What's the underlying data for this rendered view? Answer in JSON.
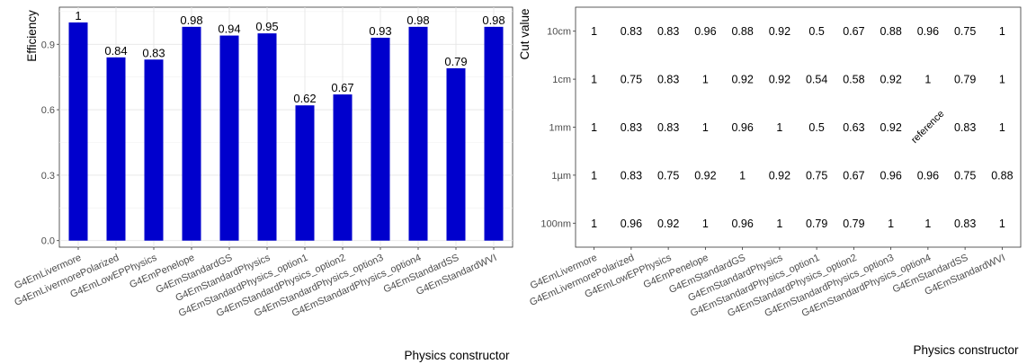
{
  "left_chart": {
    "ylabel": "Efficiency",
    "xlabel": "Physics constructor"
  },
  "right_chart": {
    "ylabel": "Cut value",
    "xlabel": "Physics constructor"
  },
  "chart_data": [
    {
      "type": "bar",
      "title": "",
      "xlabel": "Physics constructor",
      "ylabel": "Efficiency",
      "categories": [
        "G4EmLivermore",
        "G4EmLivermorePolarized",
        "G4EmLowEPPhysics",
        "G4EmPenelope",
        "G4EmStandardGS",
        "G4EmStandardPhysics",
        "G4EmStandardPhysics_option1",
        "G4EmStandardPhysics_option2",
        "G4EmStandardPhysics_option3",
        "G4EmStandardPhysics_option4",
        "G4EmStandardSS",
        "G4EmStandardWVI"
      ],
      "values": [
        1,
        0.84,
        0.83,
        0.98,
        0.94,
        0.95,
        0.62,
        0.67,
        0.93,
        0.98,
        0.79,
        0.98
      ],
      "value_labels": [
        "1",
        "0.84",
        "0.83",
        "0.98",
        "0.94",
        "0.95",
        "0.62",
        "0.67",
        "0.93",
        "0.98",
        "0.79",
        "0.98"
      ],
      "ylim": [
        -0.03,
        1.07
      ],
      "yticks": [
        0.0,
        0.3,
        0.6,
        0.9
      ],
      "ytick_labels": [
        "0.0",
        "0.3",
        "0.6",
        "0.9"
      ],
      "bar_color": "#0000CD",
      "grid": true
    },
    {
      "type": "table",
      "title": "",
      "xlabel": "Physics constructor",
      "ylabel": "Cut value",
      "columns": [
        "G4EmLivermore",
        "G4EmLivermorePolarized",
        "G4EmLowEPPhysics",
        "G4EmPenelope",
        "G4EmStandardGS",
        "G4EmStandardPhysics",
        "G4EmStandardPhysics_option1",
        "G4EmStandardPhysics_option2",
        "G4EmStandardPhysics_option3",
        "G4EmStandardPhysics_option4",
        "G4EmStandardSS",
        "G4EmStandardWVI"
      ],
      "rows": [
        "10cm",
        "1cm",
        "1mm",
        "1µm",
        "100nm"
      ],
      "cells": [
        [
          "1",
          "0.83",
          "0.83",
          "0.96",
          "0.88",
          "0.92",
          "0.5",
          "0.67",
          "0.88",
          "0.96",
          "0.75",
          "1"
        ],
        [
          "1",
          "0.75",
          "0.83",
          "1",
          "0.92",
          "0.92",
          "0.54",
          "0.58",
          "0.92",
          "1",
          "0.79",
          "1"
        ],
        [
          "1",
          "0.83",
          "0.83",
          "1",
          "0.96",
          "1",
          "0.5",
          "0.63",
          "0.92",
          "reference",
          "0.83",
          "1"
        ],
        [
          "1",
          "0.83",
          "0.75",
          "0.92",
          "1",
          "0.92",
          "0.75",
          "0.67",
          "0.96",
          "0.96",
          "0.75",
          "0.88"
        ],
        [
          "1",
          "0.96",
          "0.92",
          "1",
          "0.96",
          "1",
          "0.79",
          "0.79",
          "1",
          "1",
          "0.83",
          "1"
        ]
      ],
      "grid": false
    }
  ]
}
